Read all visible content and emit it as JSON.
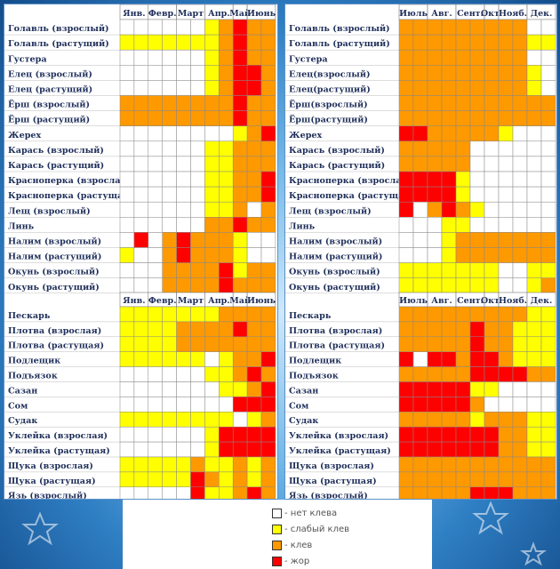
{
  "legend": {
    "items": [
      {
        "level": 0,
        "label": "- нет клева",
        "color": "#ffffff"
      },
      {
        "level": 1,
        "label": "- слабый клев",
        "color": "#ffff00"
      },
      {
        "level": 2,
        "label": "- клев",
        "color": "#ff9900"
      },
      {
        "level": 3,
        "label": "- жор",
        "color": "#ff0000"
      }
    ]
  },
  "chart_data": [
    {
      "type": "heatmap",
      "name": "left-top",
      "columns": [
        "Янв.",
        "Февр.",
        "Март",
        "Апр.",
        "Май",
        "Июнь"
      ],
      "columns_per_month": [
        2,
        2,
        2,
        2,
        1,
        2
      ],
      "rows": [
        {
          "label": "Голавль (взрослый)",
          "values": [
            0,
            0,
            0,
            0,
            0,
            0,
            1,
            2,
            3,
            2,
            2
          ]
        },
        {
          "label": "Голавль (растущий)",
          "values": [
            1,
            1,
            1,
            1,
            1,
            1,
            1,
            2,
            3,
            2,
            2
          ]
        },
        {
          "label": "Густера",
          "values": [
            0,
            0,
            0,
            0,
            0,
            0,
            1,
            2,
            3,
            2,
            2
          ]
        },
        {
          "label": "Елец (взрослый)",
          "values": [
            0,
            0,
            0,
            0,
            0,
            0,
            1,
            2,
            3,
            3,
            2
          ]
        },
        {
          "label": "Елец (растущий)",
          "values": [
            0,
            0,
            0,
            0,
            0,
            0,
            1,
            2,
            3,
            3,
            2
          ]
        },
        {
          "label": "Ёрш (взрослый)",
          "values": [
            2,
            2,
            2,
            2,
            2,
            2,
            2,
            2,
            3,
            2,
            2
          ]
        },
        {
          "label": "Ёрш (растущий)",
          "values": [
            2,
            2,
            2,
            2,
            2,
            2,
            2,
            2,
            3,
            2,
            2
          ]
        },
        {
          "label": "Жерех",
          "values": [
            0,
            0,
            0,
            0,
            0,
            0,
            0,
            0,
            1,
            2,
            3
          ]
        },
        {
          "label": "Карась (взрослый)",
          "values": [
            0,
            0,
            0,
            0,
            0,
            0,
            1,
            1,
            2,
            2,
            2
          ]
        },
        {
          "label": "Карась (растущий)",
          "values": [
            0,
            0,
            0,
            0,
            0,
            0,
            1,
            1,
            2,
            2,
            2
          ]
        },
        {
          "label": "Красноперка (взрослая)",
          "values": [
            0,
            0,
            0,
            0,
            0,
            0,
            1,
            1,
            2,
            2,
            3
          ]
        },
        {
          "label": "Красноперка (растущая)",
          "values": [
            0,
            0,
            0,
            0,
            0,
            0,
            1,
            1,
            2,
            2,
            3
          ]
        },
        {
          "label": "Лещ (взрослый)",
          "values": [
            0,
            0,
            0,
            0,
            0,
            0,
            1,
            1,
            2,
            0,
            2
          ]
        },
        {
          "label": "Линь",
          "values": [
            0,
            0,
            0,
            0,
            0,
            0,
            2,
            2,
            3,
            2,
            2
          ]
        },
        {
          "label": "Налим (взрослый)",
          "values": [
            0,
            3,
            0,
            2,
            3,
            2,
            2,
            2,
            1,
            0,
            0
          ]
        },
        {
          "label": "Налим (растущий)",
          "values": [
            1,
            0,
            0,
            2,
            3,
            2,
            2,
            2,
            1,
            0,
            0
          ]
        },
        {
          "label": "Окунь (взрослый)",
          "values": [
            0,
            0,
            0,
            2,
            2,
            2,
            2,
            3,
            1,
            2,
            2
          ]
        },
        {
          "label": "Окунь (растущий)",
          "values": [
            0,
            0,
            0,
            2,
            2,
            2,
            2,
            3,
            2,
            2,
            2
          ]
        }
      ]
    },
    {
      "type": "heatmap",
      "name": "right-top",
      "columns": [
        "Июль",
        "Авг.",
        "Сент.",
        "Окт.",
        "Нояб.",
        "Дек."
      ],
      "columns_per_month": [
        2,
        2,
        2,
        1,
        2,
        2
      ],
      "rows": [
        {
          "label": "Голавль (взрослый)",
          "values": [
            2,
            2,
            2,
            2,
            2,
            2,
            2,
            2,
            2,
            0,
            0
          ]
        },
        {
          "label": "Голавль (растущий)",
          "values": [
            2,
            2,
            2,
            2,
            2,
            2,
            2,
            2,
            2,
            1,
            1
          ]
        },
        {
          "label": "Густера",
          "values": [
            2,
            2,
            2,
            2,
            2,
            2,
            2,
            2,
            2,
            0,
            0
          ]
        },
        {
          "label": "Елец(взрослый)",
          "values": [
            2,
            2,
            2,
            2,
            2,
            2,
            2,
            2,
            2,
            1,
            0
          ]
        },
        {
          "label": "Елец(растущий)",
          "values": [
            2,
            2,
            2,
            2,
            2,
            2,
            2,
            2,
            2,
            1,
            0
          ]
        },
        {
          "label": "Ёрш(взрослый)",
          "values": [
            2,
            2,
            2,
            2,
            2,
            2,
            2,
            2,
            2,
            2,
            2
          ]
        },
        {
          "label": "Ёрш(растущий)",
          "values": [
            2,
            2,
            2,
            2,
            2,
            2,
            2,
            2,
            2,
            2,
            2
          ]
        },
        {
          "label": "Жерех",
          "values": [
            3,
            3,
            2,
            2,
            2,
            2,
            2,
            1,
            0,
            0,
            0
          ]
        },
        {
          "label": "Карась (взрослый)",
          "values": [
            2,
            2,
            2,
            2,
            2,
            0,
            0,
            0,
            0,
            0,
            0
          ]
        },
        {
          "label": "Карась (растущий)",
          "values": [
            2,
            2,
            2,
            2,
            2,
            0,
            0,
            0,
            0,
            0,
            0
          ]
        },
        {
          "label": "Красноперка (взрослая)",
          "values": [
            3,
            3,
            3,
            3,
            1,
            0,
            0,
            0,
            0,
            0,
            0
          ]
        },
        {
          "label": "Красноперка (растущая)",
          "values": [
            3,
            3,
            3,
            3,
            1,
            0,
            0,
            0,
            0,
            0,
            0
          ]
        },
        {
          "label": "Лещ (взрослый)",
          "values": [
            3,
            0,
            2,
            3,
            2,
            1,
            0,
            0,
            0,
            0,
            0
          ]
        },
        {
          "label": "Линь",
          "values": [
            0,
            0,
            0,
            1,
            1,
            0,
            0,
            0,
            0,
            0,
            0
          ]
        },
        {
          "label": "Налим (взрослый)",
          "values": [
            0,
            0,
            0,
            1,
            2,
            2,
            2,
            2,
            2,
            2,
            2
          ]
        },
        {
          "label": "Налим (растущий)",
          "values": [
            0,
            0,
            0,
            1,
            2,
            2,
            2,
            2,
            2,
            2,
            2
          ]
        },
        {
          "label": "Окунь (взрослый)",
          "values": [
            1,
            1,
            1,
            1,
            1,
            1,
            1,
            0,
            0,
            1,
            1
          ]
        },
        {
          "label": "Окунь (растущий)",
          "values": [
            1,
            1,
            1,
            1,
            1,
            1,
            1,
            0,
            0,
            1,
            2
          ]
        }
      ]
    },
    {
      "type": "heatmap",
      "name": "left-bottom",
      "columns": [
        "Янв.",
        "Февр.",
        "Март",
        "Апр.",
        "Май",
        "Июнь"
      ],
      "columns_per_month": [
        2,
        2,
        2,
        2,
        1,
        2
      ],
      "rows": [
        {
          "label": "Пескарь",
          "values": [
            1,
            1,
            1,
            1,
            1,
            1,
            1,
            2,
            2,
            2,
            2
          ]
        },
        {
          "label": "Плотва (взрослая)",
          "values": [
            1,
            1,
            1,
            1,
            2,
            2,
            2,
            2,
            3,
            2,
            2
          ]
        },
        {
          "label": "Плотва (растущая)",
          "values": [
            1,
            1,
            1,
            1,
            2,
            2,
            2,
            2,
            2,
            2,
            2
          ]
        },
        {
          "label": "Подлещик",
          "values": [
            1,
            1,
            1,
            1,
            1,
            1,
            0,
            1,
            2,
            2,
            3
          ]
        },
        {
          "label": "Подъязок",
          "values": [
            0,
            0,
            0,
            0,
            0,
            0,
            1,
            1,
            2,
            3,
            2
          ]
        },
        {
          "label": "Сазан",
          "values": [
            0,
            0,
            0,
            0,
            0,
            0,
            0,
            1,
            1,
            2,
            3
          ]
        },
        {
          "label": "Сом",
          "values": [
            0,
            0,
            0,
            0,
            0,
            0,
            0,
            0,
            3,
            3,
            3
          ]
        },
        {
          "label": "Судак",
          "values": [
            1,
            1,
            1,
            1,
            1,
            1,
            1,
            1,
            0,
            1,
            2
          ]
        },
        {
          "label": "Уклейка (взрослая)",
          "values": [
            0,
            0,
            0,
            0,
            0,
            0,
            1,
            3,
            3,
            3,
            3
          ]
        },
        {
          "label": "Уклейка (растущая)",
          "values": [
            0,
            0,
            0,
            0,
            0,
            0,
            1,
            3,
            3,
            3,
            3
          ]
        },
        {
          "label": "Щука (взрослая)",
          "values": [
            1,
            1,
            1,
            1,
            1,
            2,
            1,
            1,
            2,
            1,
            2
          ]
        },
        {
          "label": "Щука (растущая)",
          "values": [
            1,
            1,
            1,
            1,
            1,
            3,
            2,
            1,
            2,
            1,
            2
          ]
        },
        {
          "label": "Язь (взрослый)",
          "values": [
            0,
            0,
            0,
            0,
            0,
            3,
            1,
            1,
            2,
            3,
            2
          ]
        }
      ]
    },
    {
      "type": "heatmap",
      "name": "right-bottom",
      "columns": [
        "Июль",
        "Авг.",
        "Сент.",
        "Окт.",
        "Нояб.",
        "Дек."
      ],
      "columns_per_month": [
        2,
        2,
        2,
        1,
        2,
        2
      ],
      "rows": [
        {
          "label": "Пескарь",
          "values": [
            2,
            2,
            2,
            2,
            2,
            2,
            2,
            2,
            2,
            1,
            1
          ]
        },
        {
          "label": "Плотва (взрослая)",
          "values": [
            2,
            2,
            2,
            2,
            2,
            3,
            2,
            2,
            1,
            1,
            1
          ]
        },
        {
          "label": "Плотва (растущая)",
          "values": [
            2,
            2,
            2,
            2,
            2,
            3,
            2,
            2,
            1,
            1,
            1
          ]
        },
        {
          "label": "Подлещик",
          "values": [
            3,
            0,
            3,
            3,
            2,
            3,
            3,
            2,
            1,
            1,
            1
          ]
        },
        {
          "label": "Подъязок",
          "values": [
            2,
            2,
            2,
            2,
            2,
            3,
            3,
            3,
            3,
            2,
            2
          ]
        },
        {
          "label": "Сазан",
          "values": [
            3,
            3,
            3,
            3,
            3,
            1,
            1,
            0,
            0,
            0,
            0
          ]
        },
        {
          "label": "Сом",
          "values": [
            3,
            3,
            3,
            3,
            3,
            2,
            0,
            0,
            0,
            0,
            0
          ]
        },
        {
          "label": "Судак",
          "values": [
            2,
            2,
            2,
            2,
            2,
            1,
            2,
            2,
            2,
            1,
            1
          ]
        },
        {
          "label": "Уклейка (взрослая)",
          "values": [
            3,
            3,
            3,
            3,
            3,
            3,
            3,
            2,
            2,
            1,
            1
          ]
        },
        {
          "label": "Уклейка (растущая)",
          "values": [
            3,
            3,
            3,
            3,
            3,
            3,
            3,
            2,
            2,
            1,
            1
          ]
        },
        {
          "label": "Щука (взрослая)",
          "values": [
            2,
            2,
            2,
            2,
            2,
            2,
            2,
            2,
            2,
            2,
            2
          ]
        },
        {
          "label": "Щука (растущая)",
          "values": [
            2,
            2,
            2,
            2,
            2,
            2,
            2,
            2,
            2,
            2,
            2
          ]
        },
        {
          "label": "Язь (взрослый)",
          "values": [
            2,
            2,
            2,
            2,
            2,
            3,
            3,
            3,
            2,
            2,
            2
          ]
        }
      ]
    }
  ]
}
